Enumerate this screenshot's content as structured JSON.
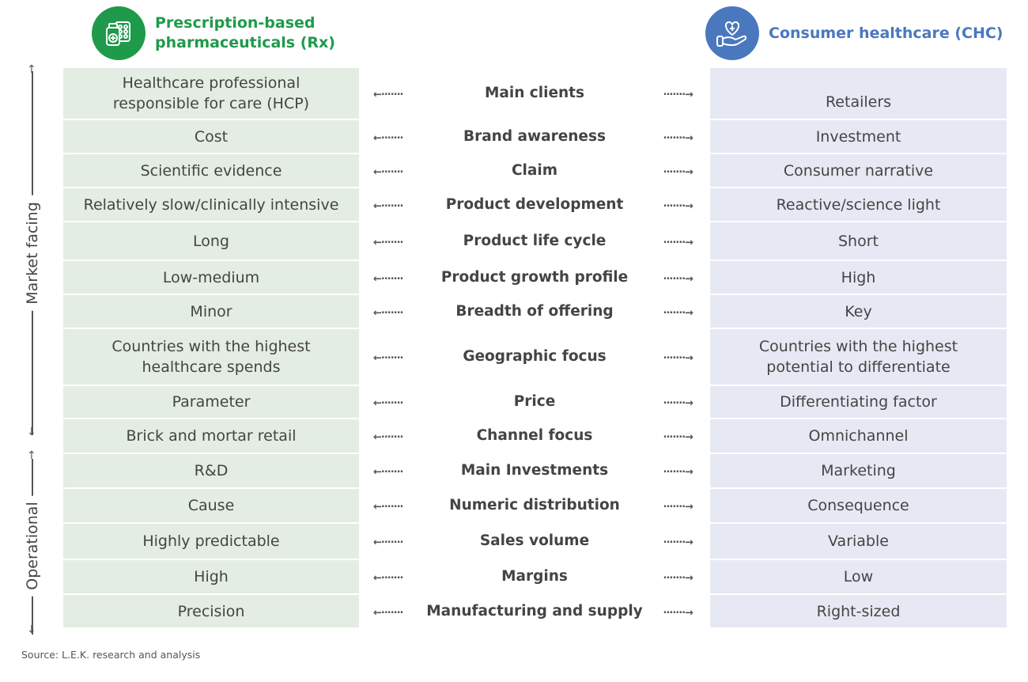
{
  "header": {
    "rx_title_line1": "Prescription-based",
    "rx_title_line2": "pharmaceuticals (Rx)",
    "rx_icon": "pill-bottle-blister-icon",
    "chc_title": "Consumer healthcare (CHC)",
    "chc_icon": "hand-heart-icon",
    "colors": {
      "rx": "#1f9a4b",
      "chc": "#4a78be",
      "rx_cell": "#e4ede3",
      "chc_cell": "#e6e9f4"
    }
  },
  "axis": {
    "market_facing": "Market facing",
    "operational": "Operational"
  },
  "rows": [
    {
      "rx": "Healthcare professional responsible for care (HCP)",
      "dimension": "Main clients",
      "chc": "Retailers"
    },
    {
      "rx": "Cost",
      "dimension": "Brand awareness",
      "chc": "Investment"
    },
    {
      "rx": "Scientific evidence",
      "dimension": "Claim",
      "chc": "Consumer narrative"
    },
    {
      "rx": "Relatively slow/clinically intensive",
      "dimension": "Product development",
      "chc": "Reactive/science light"
    },
    {
      "rx": "Long",
      "dimension": "Product life cycle",
      "chc": "Short"
    },
    {
      "rx": "Low-medium",
      "dimension": "Product growth profile",
      "chc": "High"
    },
    {
      "rx": "Minor",
      "dimension": "Breadth of offering",
      "chc": "Key"
    },
    {
      "rx": "Countries with the highest healthcare spends",
      "dimension": "Geographic focus",
      "chc": "Countries with the highest potential to differentiate"
    },
    {
      "rx": "Parameter",
      "dimension": "Price",
      "chc": "Differentiating factor"
    },
    {
      "rx": "Brick and mortar retail",
      "dimension": "Channel focus",
      "chc": "Omnichannel"
    },
    {
      "rx": "R&D",
      "dimension": "Main Investments",
      "chc": "Marketing"
    },
    {
      "rx": "Cause",
      "dimension": "Numeric distribution",
      "chc": "Consequence"
    },
    {
      "rx": "Highly predictable",
      "dimension": "Sales volume",
      "chc": "Variable"
    },
    {
      "rx": "High",
      "dimension": "Margins",
      "chc": "Low"
    },
    {
      "rx": "Precision",
      "dimension": "Manufacturing and supply",
      "chc": "Right-sized"
    }
  ],
  "source": "Source: L.E.K. research and analysis"
}
